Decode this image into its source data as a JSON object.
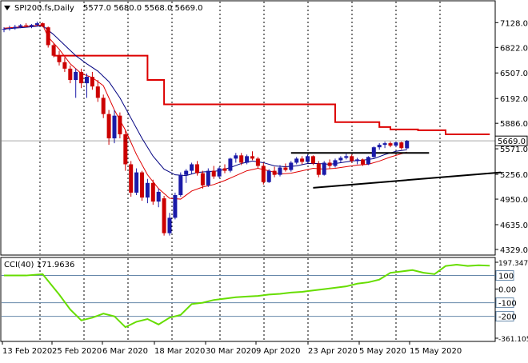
{
  "header": {
    "symbol_label": "SPI200.fs,Daily",
    "ohlc_label": "5577.0 5680.0 5568.0 5669.0"
  },
  "colors": {
    "background": "#ffffff",
    "bull_candle": "#1a1aa8",
    "bear_candle": "#cc0000",
    "ema_fast": "#e00000",
    "ema_slow": "#000080",
    "resistance_step": "#dd0000",
    "trendline": "#000000",
    "cci_line": "#66dd00",
    "grid": "#000000",
    "price_tag_bg": "#ffffff"
  },
  "chart_data": [
    {
      "type": "candlestick",
      "title": "",
      "ylim": [
        4329,
        7200
      ],
      "y_ticks": [
        "7128.0",
        "6822.0",
        "6507.0",
        "6192.0",
        "5886.0",
        "5571.0",
        "5256.0",
        "4950.0",
        "4635.0",
        "4329.0"
      ],
      "current_price_label": "5669.0",
      "x_ticks": [
        "13 Feb 2020",
        "25 Feb 2020",
        "6 Mar 2020",
        "18 Mar 2020",
        "30 Mar 2020",
        "9 Apr 2020",
        "23 Apr 2020",
        "5 May 2020",
        "15 May 2020"
      ],
      "series": [
        {
          "kind": "ohlc",
          "values": [
            [
              7040,
              7070,
              7010,
              7050
            ],
            [
              7050,
              7090,
              7030,
              7060
            ],
            [
              7060,
              7100,
              7040,
              7075
            ],
            [
              7075,
              7110,
              7060,
              7095
            ],
            [
              7095,
              7120,
              7070,
              7085
            ],
            [
              7085,
              7110,
              7060,
              7100
            ],
            [
              7100,
              7140,
              7080,
              7120
            ],
            [
              7120,
              7130,
              7070,
              7080
            ],
            [
              7070,
              7080,
              6820,
              6850
            ],
            [
              6850,
              6870,
              6700,
              6720
            ],
            [
              6720,
              6780,
              6600,
              6640
            ],
            [
              6640,
              6700,
              6520,
              6560
            ],
            [
              6560,
              6600,
              6380,
              6420
            ],
            [
              6420,
              6560,
              6200,
              6520
            ],
            [
              6520,
              6560,
              6320,
              6380
            ],
            [
              6380,
              6500,
              6200,
              6460
            ],
            [
              6460,
              6520,
              6300,
              6340
            ],
            [
              6340,
              6420,
              6150,
              6200
            ],
            [
              6200,
              6240,
              5950,
              6000
            ],
            [
              6000,
              6050,
              5620,
              5700
            ],
            [
              5700,
              6050,
              5640,
              5980
            ],
            [
              5980,
              6020,
              5700,
              5750
            ],
            [
              5750,
              5800,
              5300,
              5380
            ],
            [
              5380,
              5420,
              4980,
              5030
            ],
            [
              5030,
              5330,
              5000,
              5280
            ],
            [
              5280,
              5300,
              4930,
              4970
            ],
            [
              4970,
              5200,
              4900,
              5150
            ],
            [
              5150,
              5190,
              4880,
              4920
            ],
            [
              4920,
              5080,
              4850,
              5040
            ],
            [
              4960,
              4990,
              4500,
              4530
            ],
            [
              4530,
              4780,
              4500,
              4720
            ],
            [
              4720,
              5030,
              4700,
              5000
            ],
            [
              5000,
              5280,
              4980,
              5250
            ],
            [
              5250,
              5320,
              5150,
              5300
            ],
            [
              5300,
              5400,
              5260,
              5380
            ],
            [
              5380,
              5420,
              5240,
              5270
            ],
            [
              5270,
              5300,
              5080,
              5120
            ],
            [
              5120,
              5330,
              5100,
              5300
            ],
            [
              5300,
              5360,
              5200,
              5230
            ],
            [
              5230,
              5350,
              5210,
              5330
            ],
            [
              5330,
              5380,
              5270,
              5300
            ],
            [
              5300,
              5460,
              5280,
              5450
            ],
            [
              5450,
              5520,
              5400,
              5490
            ],
            [
              5490,
              5520,
              5370,
              5400
            ],
            [
              5400,
              5500,
              5380,
              5480
            ],
            [
              5480,
              5540,
              5430,
              5450
            ],
            [
              5450,
              5470,
              5330,
              5360
            ],
            [
              5360,
              5400,
              5130,
              5160
            ],
            [
              5160,
              5320,
              5150,
              5300
            ],
            [
              5300,
              5350,
              5220,
              5250
            ],
            [
              5250,
              5370,
              5230,
              5340
            ],
            [
              5340,
              5390,
              5290,
              5310
            ],
            [
              5310,
              5420,
              5290,
              5400
            ],
            [
              5400,
              5470,
              5380,
              5450
            ],
            [
              5450,
              5480,
              5380,
              5410
            ],
            [
              5410,
              5500,
              5400,
              5480
            ],
            [
              5480,
              5490,
              5370,
              5390
            ],
            [
              5390,
              5420,
              5220,
              5250
            ],
            [
              5250,
              5420,
              5240,
              5400
            ],
            [
              5400,
              5440,
              5330,
              5360
            ],
            [
              5360,
              5450,
              5340,
              5430
            ],
            [
              5430,
              5480,
              5400,
              5460
            ],
            [
              5460,
              5510,
              5440,
              5480
            ],
            [
              5480,
              5500,
              5400,
              5420
            ],
            [
              5420,
              5460,
              5380,
              5440
            ],
            [
              5440,
              5450,
              5360,
              5380
            ],
            [
              5380,
              5480,
              5370,
              5470
            ],
            [
              5470,
              5600,
              5460,
              5590
            ],
            [
              5590,
              5640,
              5560,
              5620
            ],
            [
              5620,
              5660,
              5580,
              5640
            ],
            [
              5640,
              5660,
              5590,
              5610
            ],
            [
              5610,
              5660,
              5590,
              5650
            ],
            [
              5650,
              5660,
              5560,
              5580
            ],
            [
              5577,
              5680,
              5568,
              5669
            ]
          ]
        },
        {
          "kind": "step",
          "name": "",
          "values": [
            [
              0,
              null
            ],
            [
              9,
              6720
            ],
            [
              23,
              6720
            ],
            [
              26,
              6420
            ],
            [
              29,
              6120
            ],
            [
              57,
              6120
            ],
            [
              60,
              5900
            ],
            [
              65,
              5900
            ],
            [
              68,
              5840
            ],
            [
              70,
              5810
            ],
            [
              73,
              5810
            ],
            [
              75,
              5800
            ],
            [
              78,
              5800
            ],
            [
              80,
              5750
            ],
            [
              88,
              5750
            ]
          ]
        },
        {
          "kind": "line",
          "name": "",
          "values": [
            [
              0,
              7060
            ],
            [
              4,
              7080
            ],
            [
              7,
              7100
            ],
            [
              8,
              6950
            ],
            [
              10,
              6800
            ],
            [
              12,
              6620
            ],
            [
              14,
              6500
            ],
            [
              16,
              6450
            ],
            [
              18,
              6350
            ],
            [
              20,
              6050
            ],
            [
              22,
              5800
            ],
            [
              24,
              5500
            ],
            [
              26,
              5250
            ],
            [
              28,
              5080
            ],
            [
              30,
              4960
            ],
            [
              32,
              4950
            ],
            [
              34,
              5050
            ],
            [
              36,
              5100
            ],
            [
              38,
              5130
            ],
            [
              40,
              5180
            ],
            [
              42,
              5240
            ],
            [
              44,
              5300
            ],
            [
              46,
              5330
            ],
            [
              48,
              5300
            ],
            [
              50,
              5260
            ],
            [
              52,
              5270
            ],
            [
              54,
              5300
            ],
            [
              56,
              5330
            ],
            [
              58,
              5320
            ],
            [
              60,
              5330
            ],
            [
              62,
              5350
            ],
            [
              64,
              5370
            ],
            [
              66,
              5380
            ],
            [
              68,
              5420
            ],
            [
              70,
              5470
            ],
            [
              72,
              5510
            ],
            [
              73,
              5530
            ]
          ]
        },
        {
          "kind": "line",
          "name": "",
          "values": [
            [
              0,
              7050
            ],
            [
              4,
              7070
            ],
            [
              7,
              7090
            ],
            [
              9,
              6980
            ],
            [
              11,
              6850
            ],
            [
              13,
              6720
            ],
            [
              15,
              6620
            ],
            [
              17,
              6530
            ],
            [
              19,
              6400
            ],
            [
              21,
              6200
            ],
            [
              23,
              5950
            ],
            [
              25,
              5700
            ],
            [
              27,
              5480
            ],
            [
              29,
              5320
            ],
            [
              31,
              5250
            ],
            [
              33,
              5240
            ],
            [
              35,
              5280
            ],
            [
              37,
              5290
            ],
            [
              39,
              5300
            ],
            [
              41,
              5340
            ],
            [
              43,
              5390
            ],
            [
              45,
              5420
            ],
            [
              47,
              5400
            ],
            [
              49,
              5360
            ],
            [
              51,
              5350
            ],
            [
              53,
              5360
            ],
            [
              55,
              5390
            ],
            [
              57,
              5390
            ],
            [
              59,
              5380
            ],
            [
              61,
              5400
            ],
            [
              63,
              5420
            ],
            [
              65,
              5430
            ],
            [
              67,
              5450
            ],
            [
              69,
              5500
            ],
            [
              71,
              5540
            ],
            [
              73,
              5560
            ]
          ]
        },
        {
          "kind": "trendlines",
          "values": [
            [
              [
                52,
                5520
              ],
              [
                77,
                5520
              ]
            ],
            [
              [
                56,
                5090
              ],
              [
                90,
                5280
              ]
            ]
          ]
        }
      ]
    },
    {
      "type": "line",
      "title": "CCI(40) 171.9636",
      "ylim": [
        -361.105,
        197.3479
      ],
      "y_ticks": [
        "197.3479",
        "100",
        "0.00",
        "-100",
        "-200",
        "-361.105"
      ],
      "current_value_label": "171.9636",
      "series": [
        {
          "name": "",
          "values": [
            [
              0,
              100
            ],
            [
              4,
              100
            ],
            [
              7,
              110
            ],
            [
              8,
              60
            ],
            [
              10,
              -40
            ],
            [
              12,
              -150
            ],
            [
              14,
              -230
            ],
            [
              16,
              -210
            ],
            [
              18,
              -180
            ],
            [
              20,
              -200
            ],
            [
              22,
              -280
            ],
            [
              24,
              -240
            ],
            [
              26,
              -220
            ],
            [
              28,
              -260
            ],
            [
              30,
              -210
            ],
            [
              32,
              -190
            ],
            [
              34,
              -110
            ],
            [
              36,
              -100
            ],
            [
              38,
              -80
            ],
            [
              40,
              -70
            ],
            [
              42,
              -60
            ],
            [
              44,
              -55
            ],
            [
              46,
              -50
            ],
            [
              48,
              -40
            ],
            [
              50,
              -35
            ],
            [
              52,
              -25
            ],
            [
              54,
              -20
            ],
            [
              56,
              -10
            ],
            [
              58,
              0
            ],
            [
              60,
              10
            ],
            [
              62,
              20
            ],
            [
              64,
              40
            ],
            [
              66,
              50
            ],
            [
              68,
              70
            ],
            [
              70,
              120
            ],
            [
              72,
              130
            ],
            [
              74,
              140
            ],
            [
              76,
              120
            ],
            [
              78,
              110
            ],
            [
              80,
              170
            ],
            [
              82,
              180
            ],
            [
              84,
              170
            ],
            [
              86,
              175
            ],
            [
              88,
              172
            ]
          ]
        }
      ]
    }
  ]
}
